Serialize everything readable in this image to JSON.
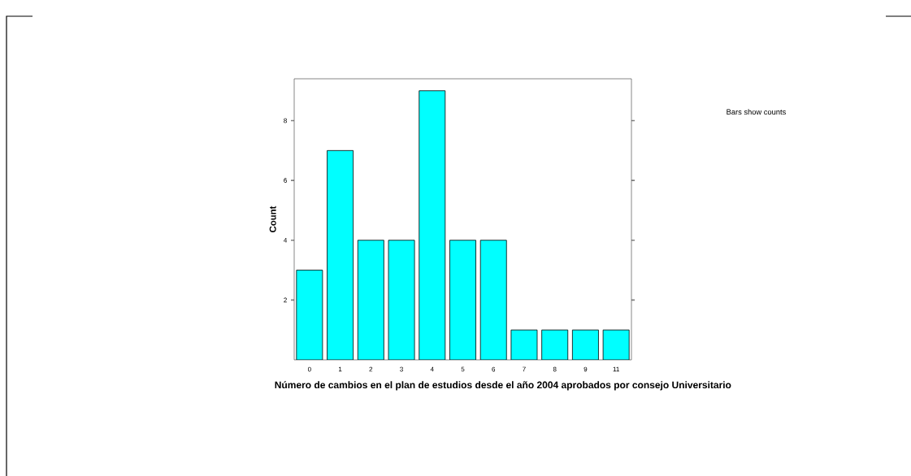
{
  "chart_data": {
    "type": "bar",
    "categories": [
      "0",
      "1",
      "2",
      "3",
      "4",
      "5",
      "6",
      "7",
      "8",
      "9",
      "11"
    ],
    "values": [
      3,
      7,
      4,
      4,
      9,
      4,
      4,
      1,
      1,
      1,
      1
    ],
    "color": "#00ffff",
    "ylim": [
      0,
      9.4
    ],
    "yticks": [
      2,
      4,
      6,
      8
    ],
    "xlabel": "Número de cambios en el plan de estudios desde el año 2004 aprobados por consejo Universitario",
    "ylabel": "Count",
    "annotations": [
      "Bars show counts"
    ]
  }
}
